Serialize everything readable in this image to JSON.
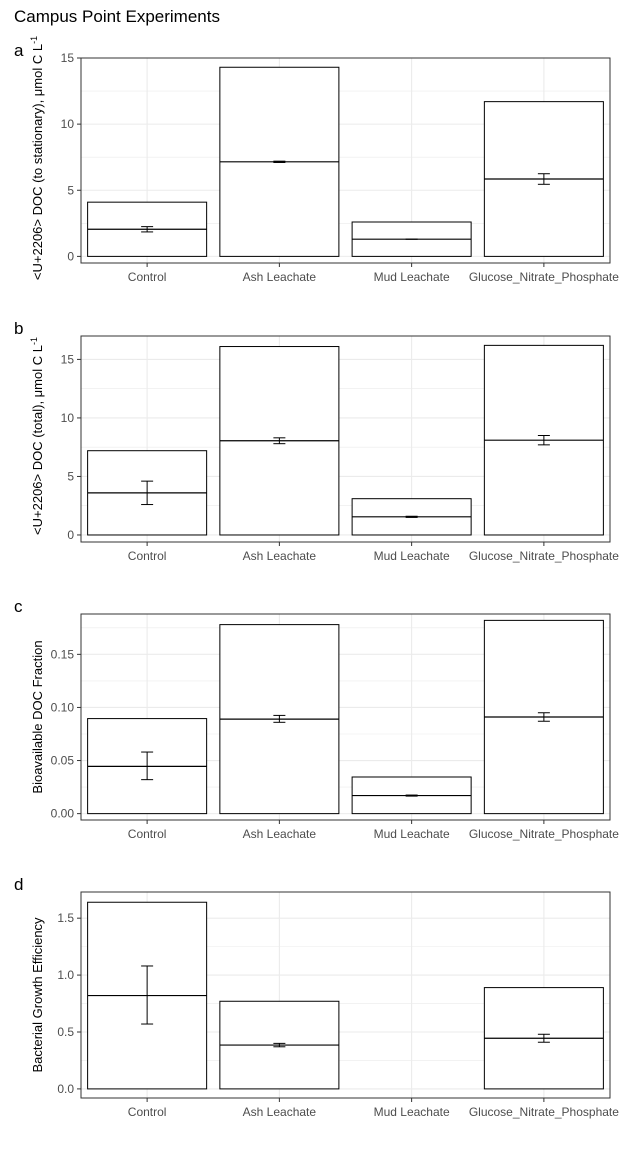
{
  "figure": {
    "title": "Campus Point Experiments"
  },
  "colors": {
    "grid": "#ebebeb",
    "frame": "#333333",
    "bar_fill": "#ffffff",
    "bar_stroke": "#000000"
  },
  "chart_data": [
    {
      "type": "bar",
      "tag": "a",
      "ylabel_main": "<U+2206> DOC (to stationary), μmol C L",
      "ylabel_sup": "-1",
      "categories": [
        "Control",
        "Ash Leachate",
        "Mud Leachate",
        "Glucose_Nitrate_Phosphate"
      ],
      "values": [
        4.1,
        14.3,
        2.6,
        11.7
      ],
      "means": [
        2.05,
        7.15,
        1.3,
        5.85
      ],
      "err_low": [
        1.85,
        7.1,
        1.3,
        5.45
      ],
      "err_high": [
        2.25,
        7.2,
        1.3,
        6.25
      ],
      "ylim": [
        -0.5,
        15.0
      ],
      "yticks": [
        0,
        5,
        10,
        15
      ],
      "ytick_labels": [
        "0",
        "5",
        "10",
        "15"
      ],
      "grid": true
    },
    {
      "type": "bar",
      "tag": "b",
      "ylabel_main": "<U+2206> DOC (total), μmol C L",
      "ylabel_sup": "-1",
      "categories": [
        "Control",
        "Ash Leachate",
        "Mud Leachate",
        "Glucose_Nitrate_Phosphate"
      ],
      "values": [
        7.2,
        16.1,
        3.1,
        16.2
      ],
      "means": [
        3.6,
        8.05,
        1.55,
        8.1
      ],
      "err_low": [
        2.6,
        7.8,
        1.5,
        7.7
      ],
      "err_high": [
        4.6,
        8.3,
        1.6,
        8.5
      ],
      "ylim": [
        -0.6,
        17.0
      ],
      "yticks": [
        0,
        5,
        10,
        15
      ],
      "ytick_labels": [
        "0",
        "5",
        "10",
        "15"
      ],
      "grid": true
    },
    {
      "type": "bar",
      "tag": "c",
      "ylabel_main": "Bioavailable DOC Fraction",
      "ylabel_sup": "",
      "categories": [
        "Control",
        "Ash Leachate",
        "Mud Leachate",
        "Glucose_Nitrate_Phosphate"
      ],
      "values": [
        0.0895,
        0.178,
        0.0345,
        0.182
      ],
      "means": [
        0.0445,
        0.089,
        0.017,
        0.091
      ],
      "err_low": [
        0.032,
        0.086,
        0.0165,
        0.087
      ],
      "err_high": [
        0.058,
        0.0925,
        0.0175,
        0.095
      ],
      "ylim": [
        -0.006,
        0.188
      ],
      "yticks": [
        0.0,
        0.05,
        0.1,
        0.15
      ],
      "ytick_labels": [
        "0.00",
        "0.05",
        "0.10",
        "0.15"
      ],
      "grid": true
    },
    {
      "type": "bar",
      "tag": "d",
      "ylabel_main": "Bacterial Growth Efficiency",
      "ylabel_sup": "",
      "categories": [
        "Control",
        "Ash Leachate",
        "Mud Leachate",
        "Glucose_Nitrate_Phosphate"
      ],
      "values": [
        1.64,
        0.77,
        null,
        0.89
      ],
      "means": [
        0.82,
        0.385,
        null,
        0.445
      ],
      "err_low": [
        0.57,
        0.37,
        null,
        0.41
      ],
      "err_high": [
        1.08,
        0.4,
        null,
        0.48
      ],
      "ylim": [
        -0.08,
        1.73
      ],
      "yticks": [
        0.0,
        0.5,
        1.0,
        1.5
      ],
      "ytick_labels": [
        "0.0",
        "0.5",
        "1.0",
        "1.5"
      ],
      "grid": true
    }
  ]
}
